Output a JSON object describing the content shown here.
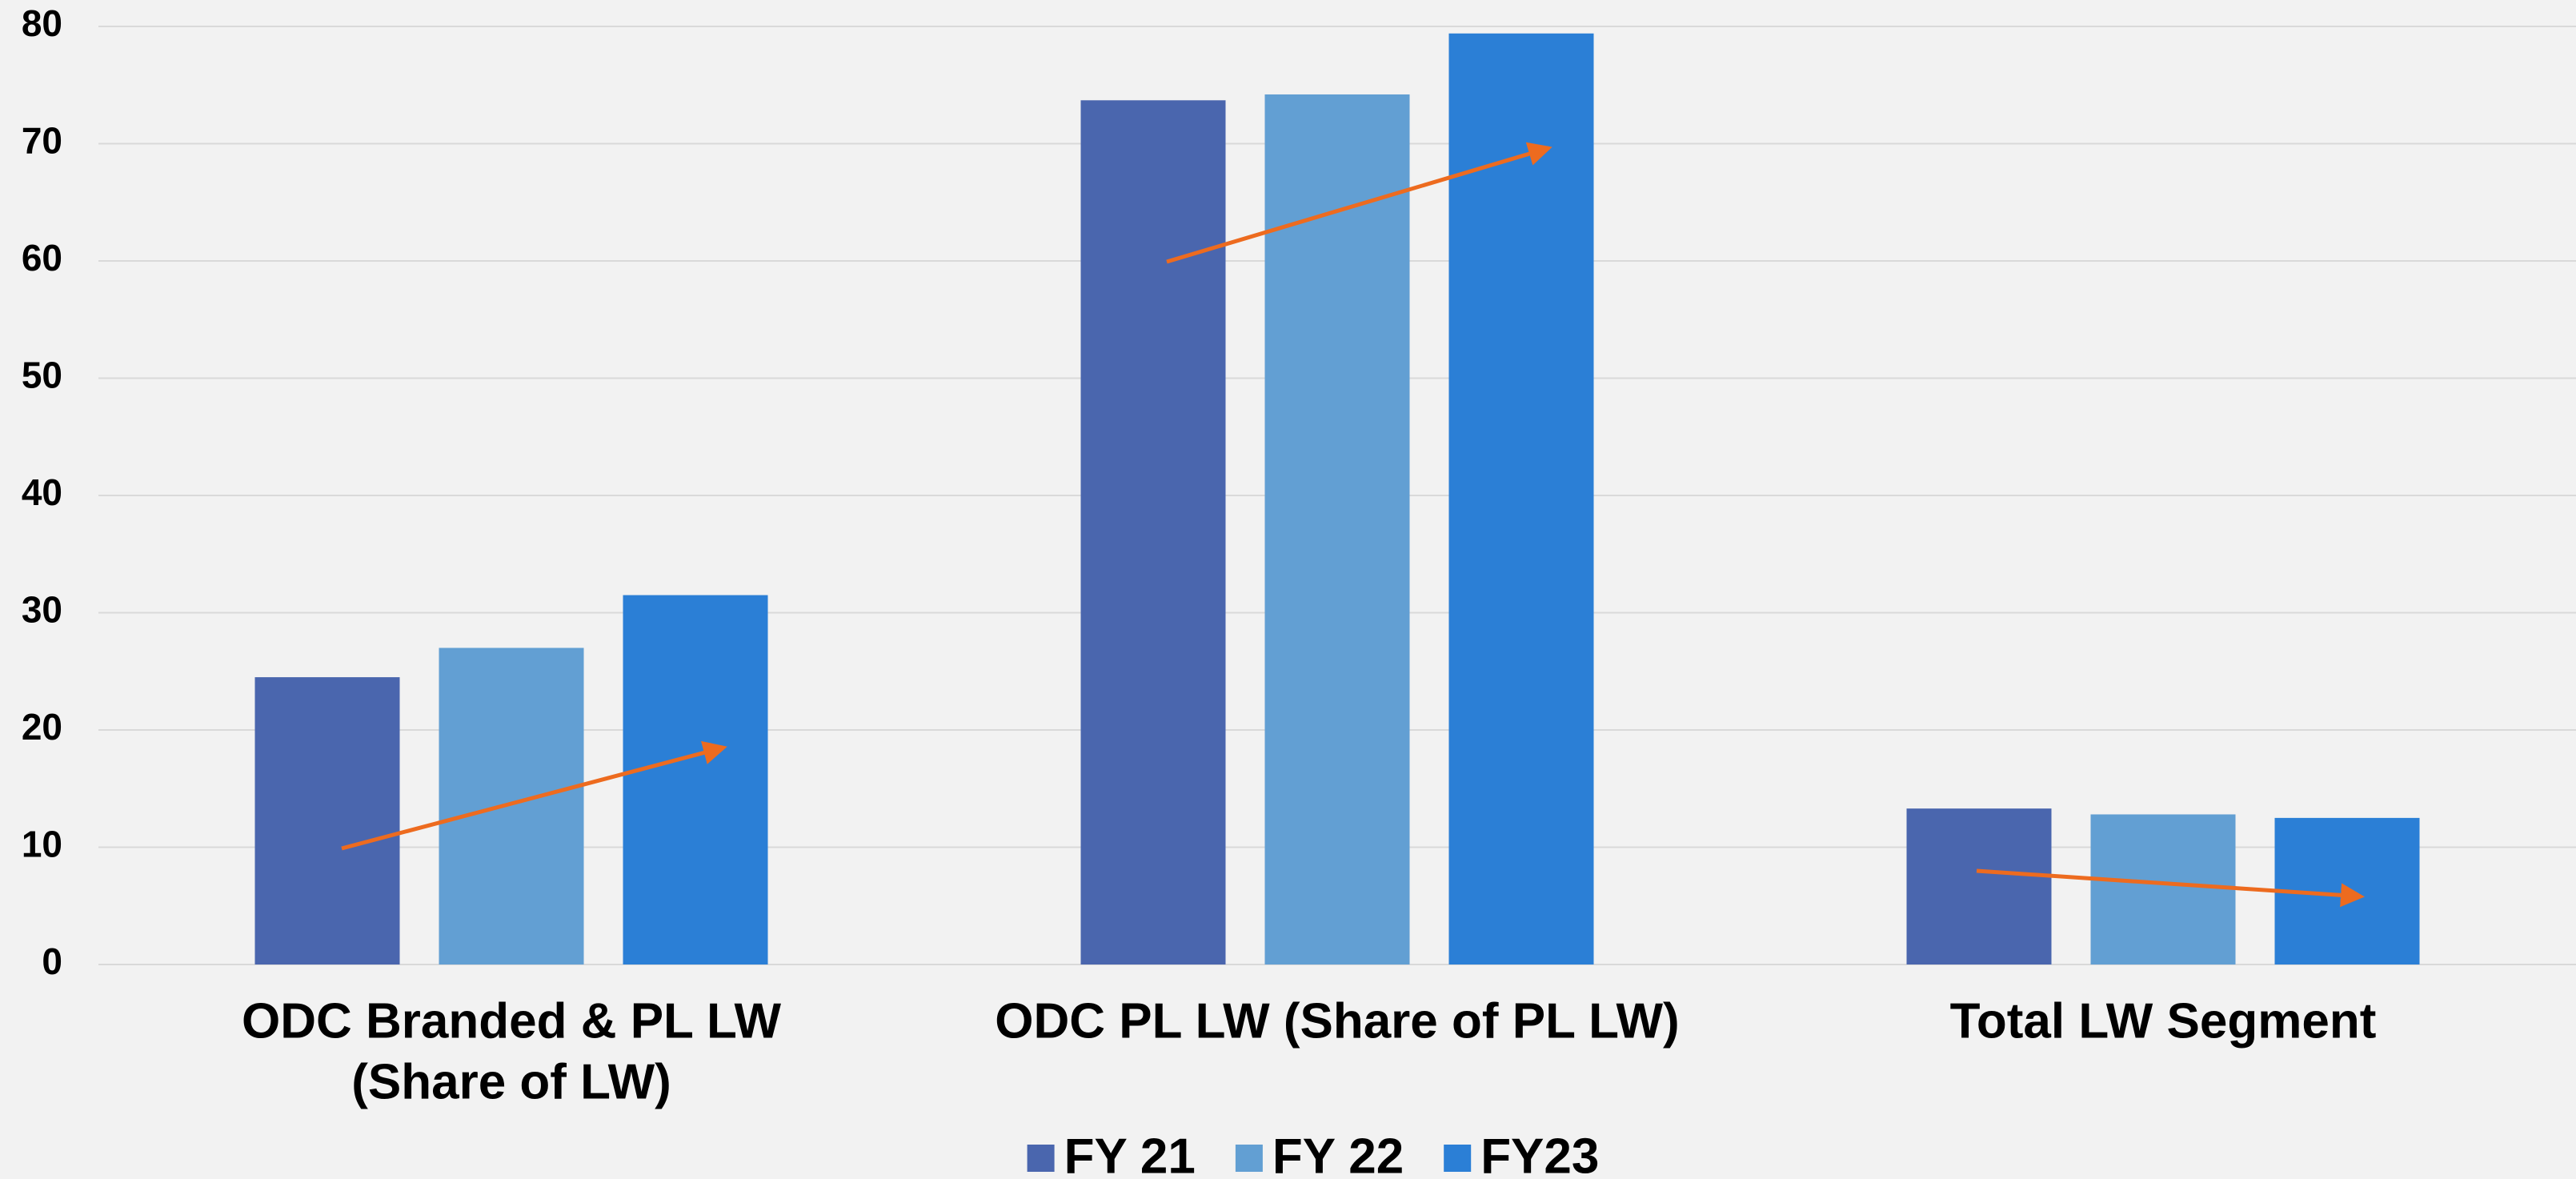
{
  "chart_data": {
    "type": "bar",
    "categories": [
      [
        "ODC Branded & PL LW",
        "(Share of LW)"
      ],
      [
        "ODC PL LW (Share of PL LW)"
      ],
      [
        "Total LW Segment"
      ]
    ],
    "series": [
      {
        "name": "FY 21",
        "color": "#4a66ae",
        "values": [
          24.5,
          73.7,
          13.3
        ]
      },
      {
        "name": "FY 22",
        "color": "#629fd3",
        "values": [
          27,
          74.2,
          12.8
        ]
      },
      {
        "name": "FY23",
        "color": "#2b7fd6",
        "values": [
          31.5,
          79.4,
          12.5
        ]
      }
    ],
    "ylim": [
      0,
      80
    ],
    "yticks": [
      0,
      10,
      20,
      30,
      40,
      50,
      60,
      70,
      80
    ],
    "grid": true,
    "legend": "bottom"
  }
}
